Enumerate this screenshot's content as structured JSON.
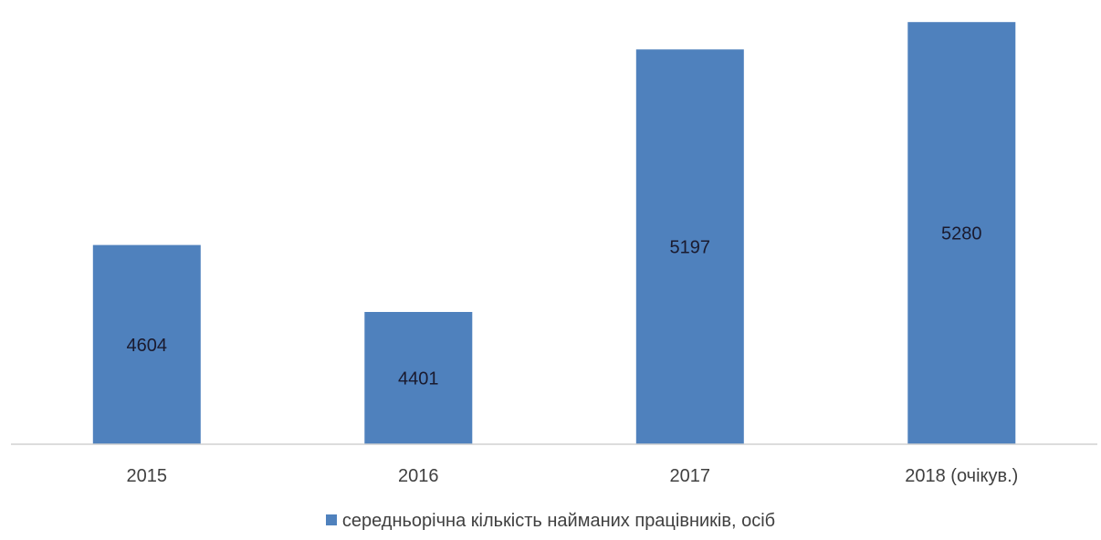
{
  "chart_data": {
    "type": "bar",
    "categories": [
      "2015",
      "2016",
      "2017",
      "2018 (очікув.)"
    ],
    "series": [
      {
        "name": "середньорічна кількість найманих працівників, осіб",
        "values": [
          4604,
          4401,
          5197,
          5280
        ],
        "color": "#4f81bd"
      }
    ],
    "data_labels": [
      "4604",
      "4401",
      "5197",
      "5280"
    ],
    "ylim": [
      4000,
      5300
    ],
    "grid": false,
    "legend": "bottom"
  }
}
